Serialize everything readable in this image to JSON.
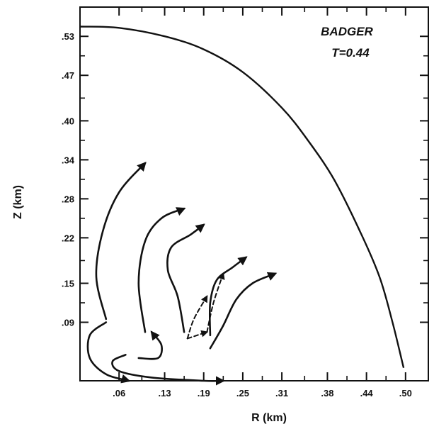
{
  "chart_data": {
    "type": "line",
    "title": "",
    "annotations": [
      "BADGER",
      "T=0.44"
    ],
    "xlabel": "R (km)",
    "ylabel": "Z (km)",
    "xlim": [
      0,
      0.535
    ],
    "ylim": [
      0,
      0.575
    ],
    "x_ticks": [
      {
        "value": 0.06,
        "label": ".06"
      },
      {
        "value": 0.13,
        "label": ".13"
      },
      {
        "value": 0.19,
        "label": ".19"
      },
      {
        "value": 0.25,
        "label": ".25"
      },
      {
        "value": 0.31,
        "label": ".31"
      },
      {
        "value": 0.38,
        "label": ".38"
      },
      {
        "value": 0.44,
        "label": ".44"
      },
      {
        "value": 0.5,
        "label": ".50"
      }
    ],
    "y_ticks": [
      {
        "value": 0.09,
        "label": ".09"
      },
      {
        "value": 0.15,
        "label": ".15"
      },
      {
        "value": 0.22,
        "label": ".22"
      },
      {
        "value": 0.28,
        "label": ".28"
      },
      {
        "value": 0.34,
        "label": ".34"
      },
      {
        "value": 0.4,
        "label": ".40"
      },
      {
        "value": 0.47,
        "label": ".47"
      },
      {
        "value": 0.53,
        "label": ".53"
      }
    ],
    "boundary": {
      "points": [
        [
          0,
          0.545
        ],
        [
          0.06,
          0.543
        ],
        [
          0.13,
          0.53
        ],
        [
          0.19,
          0.51
        ],
        [
          0.25,
          0.475
        ],
        [
          0.31,
          0.42
        ],
        [
          0.35,
          0.37
        ],
        [
          0.39,
          0.31
        ],
        [
          0.43,
          0.23
        ],
        [
          0.46,
          0.16
        ],
        [
          0.48,
          0.09
        ],
        [
          0.497,
          0.02
        ]
      ]
    },
    "series": [
      {
        "style": "solid",
        "arrow": true,
        "points": [
          [
            0.04,
            0.095
          ],
          [
            0.025,
            0.16
          ],
          [
            0.035,
            0.23
          ],
          [
            0.06,
            0.29
          ],
          [
            0.1,
            0.335
          ]
        ]
      },
      {
        "style": "solid",
        "arrow": true,
        "points": [
          [
            0.1,
            0.075
          ],
          [
            0.09,
            0.15
          ],
          [
            0.1,
            0.215
          ],
          [
            0.125,
            0.25
          ],
          [
            0.16,
            0.265
          ]
        ]
      },
      {
        "style": "solid",
        "arrow": true,
        "points": [
          [
            0.16,
            0.075
          ],
          [
            0.15,
            0.13
          ],
          [
            0.135,
            0.17
          ],
          [
            0.14,
            0.205
          ],
          [
            0.17,
            0.225
          ],
          [
            0.19,
            0.24
          ]
        ]
      },
      {
        "style": "solid",
        "arrow": true,
        "points": [
          [
            0.2,
            0.07
          ],
          [
            0.2,
            0.12
          ],
          [
            0.21,
            0.155
          ],
          [
            0.235,
            0.175
          ],
          [
            0.255,
            0.19
          ]
        ]
      },
      {
        "style": "solid",
        "arrow": true,
        "points": [
          [
            0.2,
            0.05
          ],
          [
            0.22,
            0.085
          ],
          [
            0.24,
            0.125
          ],
          [
            0.265,
            0.15
          ],
          [
            0.3,
            0.165
          ]
        ]
      },
      {
        "style": "solid",
        "arrow": true,
        "points": [
          [
            0.04,
            0.09
          ],
          [
            0.015,
            0.07
          ],
          [
            0.015,
            0.035
          ],
          [
            0.04,
            0.01
          ],
          [
            0.075,
            0.0
          ]
        ]
      },
      {
        "style": "solid",
        "arrow": true,
        "points": [
          [
            0.07,
            0.04
          ],
          [
            0.05,
            0.03
          ],
          [
            0.06,
            0.015
          ],
          [
            0.11,
            0.005
          ],
          [
            0.19,
            0.0
          ],
          [
            0.22,
            0.0
          ]
        ]
      },
      {
        "style": "solid",
        "arrow": true,
        "points": [
          [
            0.09,
            0.035
          ],
          [
            0.12,
            0.035
          ],
          [
            0.125,
            0.055
          ],
          [
            0.11,
            0.075
          ]
        ]
      },
      {
        "style": "dashed",
        "arrow": true,
        "points": [
          [
            0.165,
            0.065
          ],
          [
            0.175,
            0.095
          ],
          [
            0.195,
            0.13
          ]
        ]
      },
      {
        "style": "dashed",
        "arrow": true,
        "points": [
          [
            0.165,
            0.065
          ],
          [
            0.18,
            0.07
          ],
          [
            0.195,
            0.075
          ]
        ]
      },
      {
        "style": "dashed",
        "arrow": true,
        "points": [
          [
            0.195,
            0.075
          ],
          [
            0.205,
            0.12
          ],
          [
            0.22,
            0.165
          ]
        ]
      }
    ]
  }
}
